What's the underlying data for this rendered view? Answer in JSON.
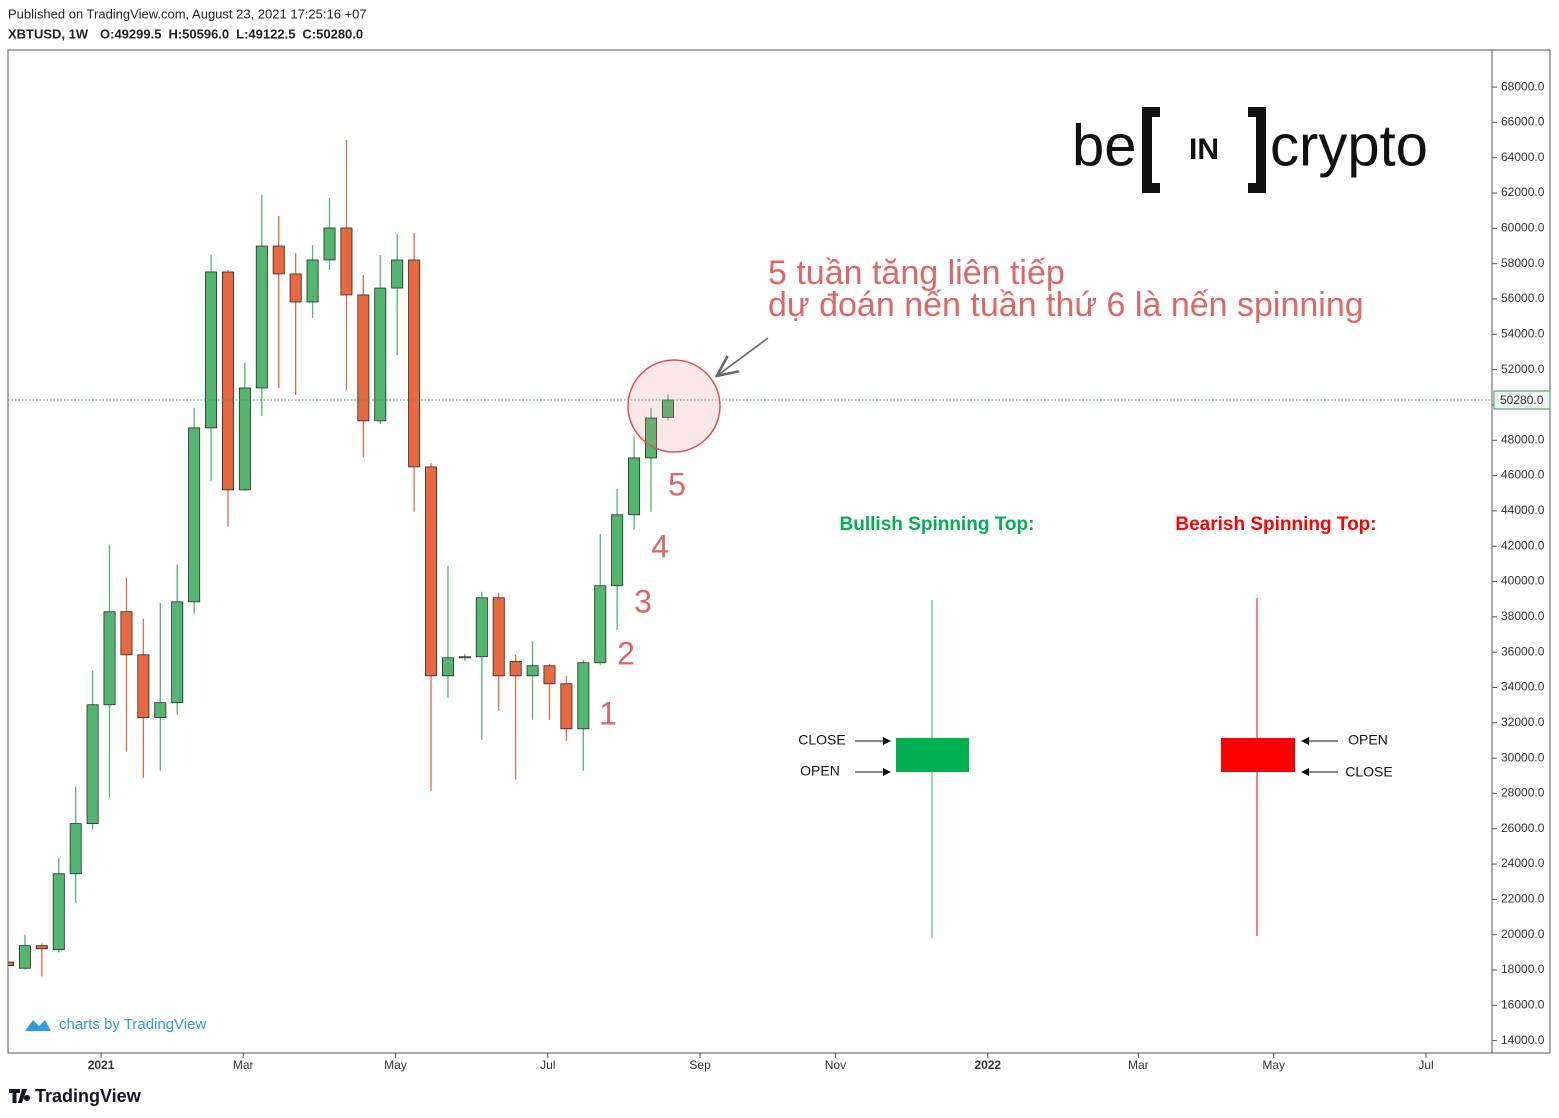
{
  "header": {
    "published": "Published on TradingView.com, August 23, 2021 17:25:16 +07",
    "symbol": "XBTUSD, 1W",
    "ohlc": [
      "O:49299.5",
      "H:50596.0",
      "L:49122.5",
      "C:50280.0"
    ]
  },
  "chart_data": {
    "type": "candlestick",
    "x": [
      0,
      1,
      2,
      3,
      4,
      5,
      6,
      7,
      8,
      9,
      10,
      11,
      12,
      13,
      14,
      15,
      16,
      17,
      18,
      19,
      20,
      21,
      22,
      23,
      24,
      25,
      26,
      27,
      28,
      29,
      30,
      31,
      32,
      33,
      34,
      35,
      36,
      37,
      38,
      39
    ],
    "open": [
      18450,
      18100,
      19380,
      19150,
      23450,
      26290,
      33020,
      38290,
      35850,
      32290,
      33140,
      38850,
      48700,
      57530,
      45190,
      50960,
      59000,
      57420,
      55830,
      58210,
      60020,
      56230,
      49100,
      56620,
      58210,
      46490,
      34660,
      35680,
      35740,
      39080,
      35470,
      34660,
      35230,
      34210,
      31660,
      35400,
      39760,
      43780,
      47000,
      49299.5
    ],
    "high": [
      18500,
      20000,
      19500,
      24360,
      28380,
      34950,
      42080,
      40210,
      37890,
      38790,
      40950,
      49830,
      58490,
      57640,
      52380,
      61890,
      60700,
      58600,
      59060,
      61720,
      65000,
      57360,
      58490,
      59680,
      59740,
      46720,
      40890,
      35900,
      39420,
      39360,
      35850,
      36640,
      35340,
      34660,
      35570,
      42700,
      45250,
      48190,
      49830,
      50596.0
    ],
    "low": [
      18100,
      18020,
      17630,
      18990,
      21810,
      25950,
      27760,
      30360,
      28890,
      29290,
      32460,
      38170,
      45700,
      43100,
      45130,
      49380,
      50960,
      50570,
      54930,
      57640,
      50850,
      47060,
      48930,
      52830,
      43950,
      28150,
      33420,
      35500,
      31040,
      32680,
      28780,
      32170,
      32170,
      30980,
      29290,
      35290,
      37270,
      42930,
      43950,
      49122.5
    ],
    "close": [
      18250,
      19380,
      19200,
      23450,
      26290,
      33020,
      38290,
      35850,
      32290,
      33140,
      38850,
      48700,
      57530,
      45190,
      50960,
      59000,
      57420,
      55830,
      58210,
      60020,
      56230,
      49100,
      56620,
      58210,
      46490,
      34660,
      35680,
      35740,
      39080,
      34660,
      34660,
      35230,
      34210,
      31660,
      35400,
      39760,
      43780,
      47000,
      49260,
      50280.0
    ],
    "up_color": "#52b66f",
    "down_color": "#e8683f",
    "xlim": [
      0,
      87.7
    ],
    "xticks": [
      {
        "value": 5.5,
        "label": "2021"
      },
      {
        "value": 13.9,
        "label": "Mar"
      },
      {
        "value": 22.9,
        "label": "May"
      },
      {
        "value": 31.9,
        "label": "Jul"
      },
      {
        "value": 40.9,
        "label": "Sep"
      },
      {
        "value": 48.9,
        "label": "Nov"
      },
      {
        "value": 57.9,
        "label": "2022"
      },
      {
        "value": 66.8,
        "label": "Mar"
      },
      {
        "value": 74.8,
        "label": "May"
      },
      {
        "value": 83.8,
        "label": "Jul"
      }
    ],
    "ylim": [
      13300,
      70100
    ],
    "yticks": [
      {
        "value": 14000,
        "label": "14000.0"
      },
      {
        "value": 16000,
        "label": "16000.0"
      },
      {
        "value": 18000,
        "label": "18000.0"
      },
      {
        "value": 20000,
        "label": "20000.0"
      },
      {
        "value": 22000,
        "label": "22000.0"
      },
      {
        "value": 24000,
        "label": "24000.0"
      },
      {
        "value": 26000,
        "label": "26000.0"
      },
      {
        "value": 28000,
        "label": "28000.0"
      },
      {
        "value": 30000,
        "label": "30000.0"
      },
      {
        "value": 32000,
        "label": "32000.0"
      },
      {
        "value": 34000,
        "label": "34000.0"
      },
      {
        "value": 36000,
        "label": "36000.0"
      },
      {
        "value": 38000,
        "label": "38000.0"
      },
      {
        "value": 40000,
        "label": "40000.0"
      },
      {
        "value": 42000,
        "label": "42000.0"
      },
      {
        "value": 44000,
        "label": "44000.0"
      },
      {
        "value": 46000,
        "label": "46000.0"
      },
      {
        "value": 48000,
        "label": "48000.0"
      },
      {
        "value": 50000,
        "label": "50000.0"
      },
      {
        "value": 52000,
        "label": "52000.0"
      },
      {
        "value": 54000,
        "label": "54000.0"
      },
      {
        "value": 56000,
        "label": "56000.0"
      },
      {
        "value": 58000,
        "label": "58000.0"
      },
      {
        "value": 60000,
        "label": "60000.0"
      },
      {
        "value": 62000,
        "label": "62000.0"
      },
      {
        "value": 64000,
        "label": "64000.0"
      },
      {
        "value": 66000,
        "label": "66000.0"
      },
      {
        "value": 68000,
        "label": "68000.0"
      }
    ],
    "grid": false,
    "last_price": {
      "value": 50280,
      "label": "50280.0"
    },
    "annotations": [
      "5 tuần tăng liên tiếp",
      "dự đoán nến tuần thứ 6 là nến spinning"
    ],
    "week_labels": [
      "1",
      "2",
      "3",
      "4",
      "5"
    ]
  },
  "diagram": {
    "bullish": {
      "title": "Bullish Spinning Top:",
      "top": "CLOSE",
      "bottom": "OPEN"
    },
    "bearish": {
      "title": "Bearish Spinning Top:",
      "top": "OPEN",
      "bottom": "CLOSE"
    }
  },
  "logo": [
    "be",
    "IN",
    "crypto"
  ],
  "watermark": "charts by TradingView",
  "footer": "TradingView"
}
